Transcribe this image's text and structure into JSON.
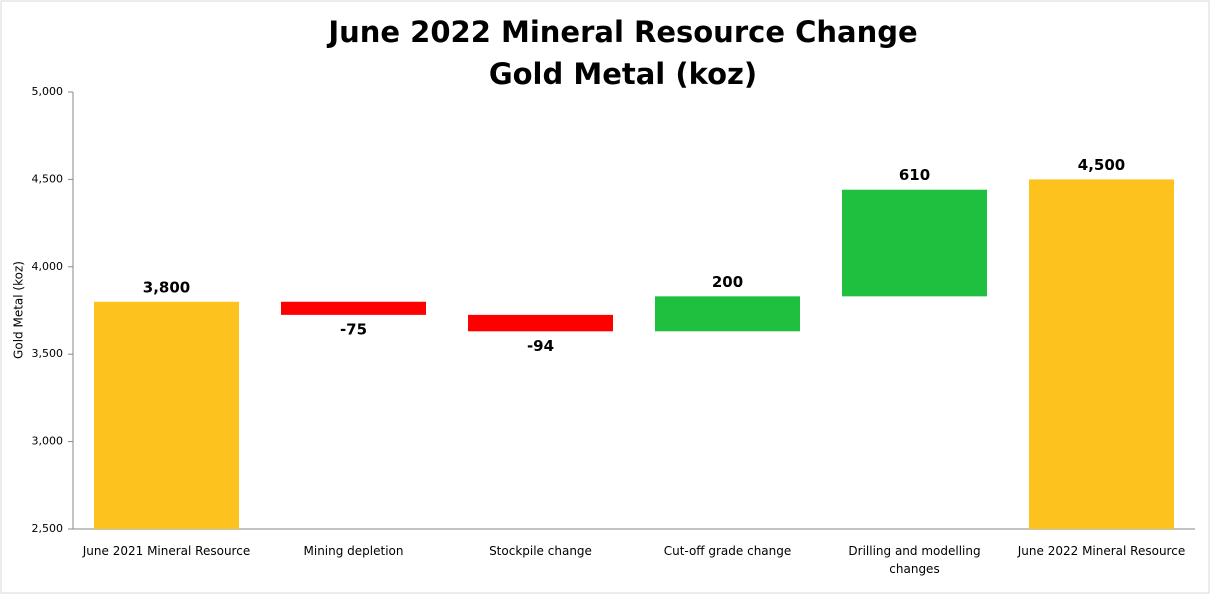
{
  "chart_data": {
    "type": "waterfall",
    "title": "June 2022 Mineral Resource Change",
    "subtitle": "Gold Metal (koz)",
    "y_label": "Gold Metal (koz)",
    "categories": [
      "June 2021 Mineral Resource",
      "Mining depletion",
      "Stockpile change",
      "Cut-off grade change",
      "Drilling and modelling changes",
      "June 2022 Mineral Resource"
    ],
    "values": [
      3800,
      -75,
      -94,
      200,
      610,
      4500
    ],
    "value_labels": [
      "3,800",
      "-75",
      "-94",
      "200",
      "610",
      "4,500"
    ],
    "measure": [
      "absolute",
      "relative",
      "relative",
      "relative",
      "relative",
      "total"
    ],
    "colors": {
      "total": "#FDC21E",
      "decrease": "#FF0000",
      "increase": "#1FBF3F"
    },
    "ylim": [
      2500,
      5000
    ],
    "yticks": [
      {
        "value": 2500,
        "label": "2,500"
      },
      {
        "value": 3000,
        "label": "3,000"
      },
      {
        "value": 3500,
        "label": "3,500"
      },
      {
        "value": 4000,
        "label": "4,000"
      },
      {
        "value": 4500,
        "label": "4,500"
      },
      {
        "value": 5000,
        "label": "5,000"
      }
    ],
    "grid": false
  }
}
